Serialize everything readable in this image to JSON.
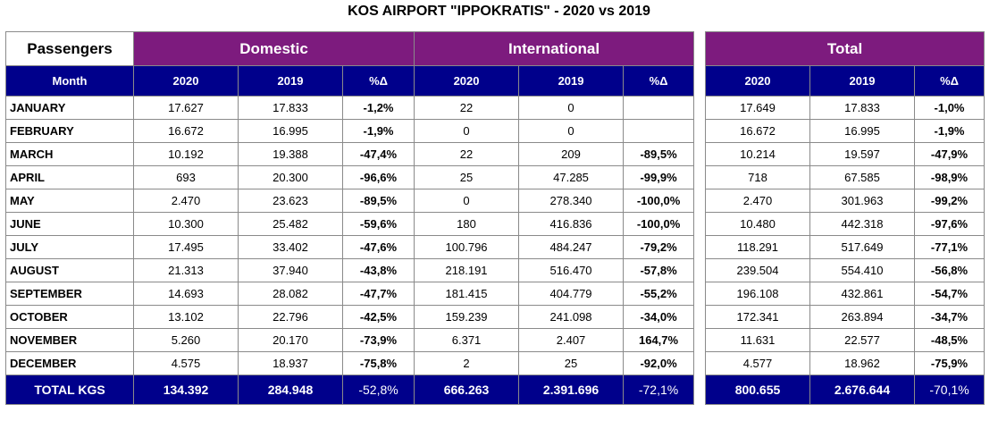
{
  "title": "KOS AIRPORT \"IPPOKRATIS\" - 2020 vs 2019",
  "headers": {
    "passengers": "Passengers",
    "domestic": "Domestic",
    "international": "International",
    "total": "Total",
    "month": "Month",
    "y2020": "2020",
    "y2019": "2019",
    "pct": "%Δ"
  },
  "rows": [
    {
      "month": "JANUARY",
      "dom20": "17.627",
      "dom19": "17.833",
      "domPct": "-1,2%",
      "int20": "22",
      "int19": "0",
      "intPct": "",
      "tot20": "17.649",
      "tot19": "17.833",
      "totPct": "-1,0%"
    },
    {
      "month": "FEBRUARY",
      "dom20": "16.672",
      "dom19": "16.995",
      "domPct": "-1,9%",
      "int20": "0",
      "int19": "0",
      "intPct": "",
      "tot20": "16.672",
      "tot19": "16.995",
      "totPct": "-1,9%"
    },
    {
      "month": "MARCH",
      "dom20": "10.192",
      "dom19": "19.388",
      "domPct": "-47,4%",
      "int20": "22",
      "int19": "209",
      "intPct": "-89,5%",
      "tot20": "10.214",
      "tot19": "19.597",
      "totPct": "-47,9%"
    },
    {
      "month": "APRIL",
      "dom20": "693",
      "dom19": "20.300",
      "domPct": "-96,6%",
      "int20": "25",
      "int19": "47.285",
      "intPct": "-99,9%",
      "tot20": "718",
      "tot19": "67.585",
      "totPct": "-98,9%"
    },
    {
      "month": "MAY",
      "dom20": "2.470",
      "dom19": "23.623",
      "domPct": "-89,5%",
      "int20": "0",
      "int19": "278.340",
      "intPct": "-100,0%",
      "tot20": "2.470",
      "tot19": "301.963",
      "totPct": "-99,2%"
    },
    {
      "month": "JUNE",
      "dom20": "10.300",
      "dom19": "25.482",
      "domPct": "-59,6%",
      "int20": "180",
      "int19": "416.836",
      "intPct": "-100,0%",
      "tot20": "10.480",
      "tot19": "442.318",
      "totPct": "-97,6%"
    },
    {
      "month": "JULY",
      "dom20": "17.495",
      "dom19": "33.402",
      "domPct": "-47,6%",
      "int20": "100.796",
      "int19": "484.247",
      "intPct": "-79,2%",
      "tot20": "118.291",
      "tot19": "517.649",
      "totPct": "-77,1%"
    },
    {
      "month": "AUGUST",
      "dom20": "21.313",
      "dom19": "37.940",
      "domPct": "-43,8%",
      "int20": "218.191",
      "int19": "516.470",
      "intPct": "-57,8%",
      "tot20": "239.504",
      "tot19": "554.410",
      "totPct": "-56,8%"
    },
    {
      "month": "SEPTEMBER",
      "dom20": "14.693",
      "dom19": "28.082",
      "domPct": "-47,7%",
      "int20": "181.415",
      "int19": "404.779",
      "intPct": "-55,2%",
      "tot20": "196.108",
      "tot19": "432.861",
      "totPct": "-54,7%"
    },
    {
      "month": "OCTOBER",
      "dom20": "13.102",
      "dom19": "22.796",
      "domPct": "-42,5%",
      "int20": "159.239",
      "int19": "241.098",
      "intPct": "-34,0%",
      "tot20": "172.341",
      "tot19": "263.894",
      "totPct": "-34,7%"
    },
    {
      "month": "NOVEMBER",
      "dom20": "5.260",
      "dom19": "20.170",
      "domPct": "-73,9%",
      "int20": "6.371",
      "int19": "2.407",
      "intPct": "164,7%",
      "tot20": "11.631",
      "tot19": "22.577",
      "totPct": "-48,5%"
    },
    {
      "month": "DECEMBER",
      "dom20": "4.575",
      "dom19": "18.937",
      "domPct": "-75,8%",
      "int20": "2",
      "int19": "25",
      "intPct": "-92,0%",
      "tot20": "4.577",
      "tot19": "18.962",
      "totPct": "-75,9%"
    }
  ],
  "totals": {
    "label": "TOTAL KGS",
    "dom20": "134.392",
    "dom19": "284.948",
    "domPct": "-52,8%",
    "int20": "666.263",
    "int19": "2.391.696",
    "intPct": "-72,1%",
    "tot20": "800.655",
    "tot19": "2.676.644",
    "totPct": "-70,1%"
  },
  "colors": {
    "header_purple": "#7d1b7e",
    "subheader_navy": "#00008b",
    "grid": "#8a8a8a"
  }
}
